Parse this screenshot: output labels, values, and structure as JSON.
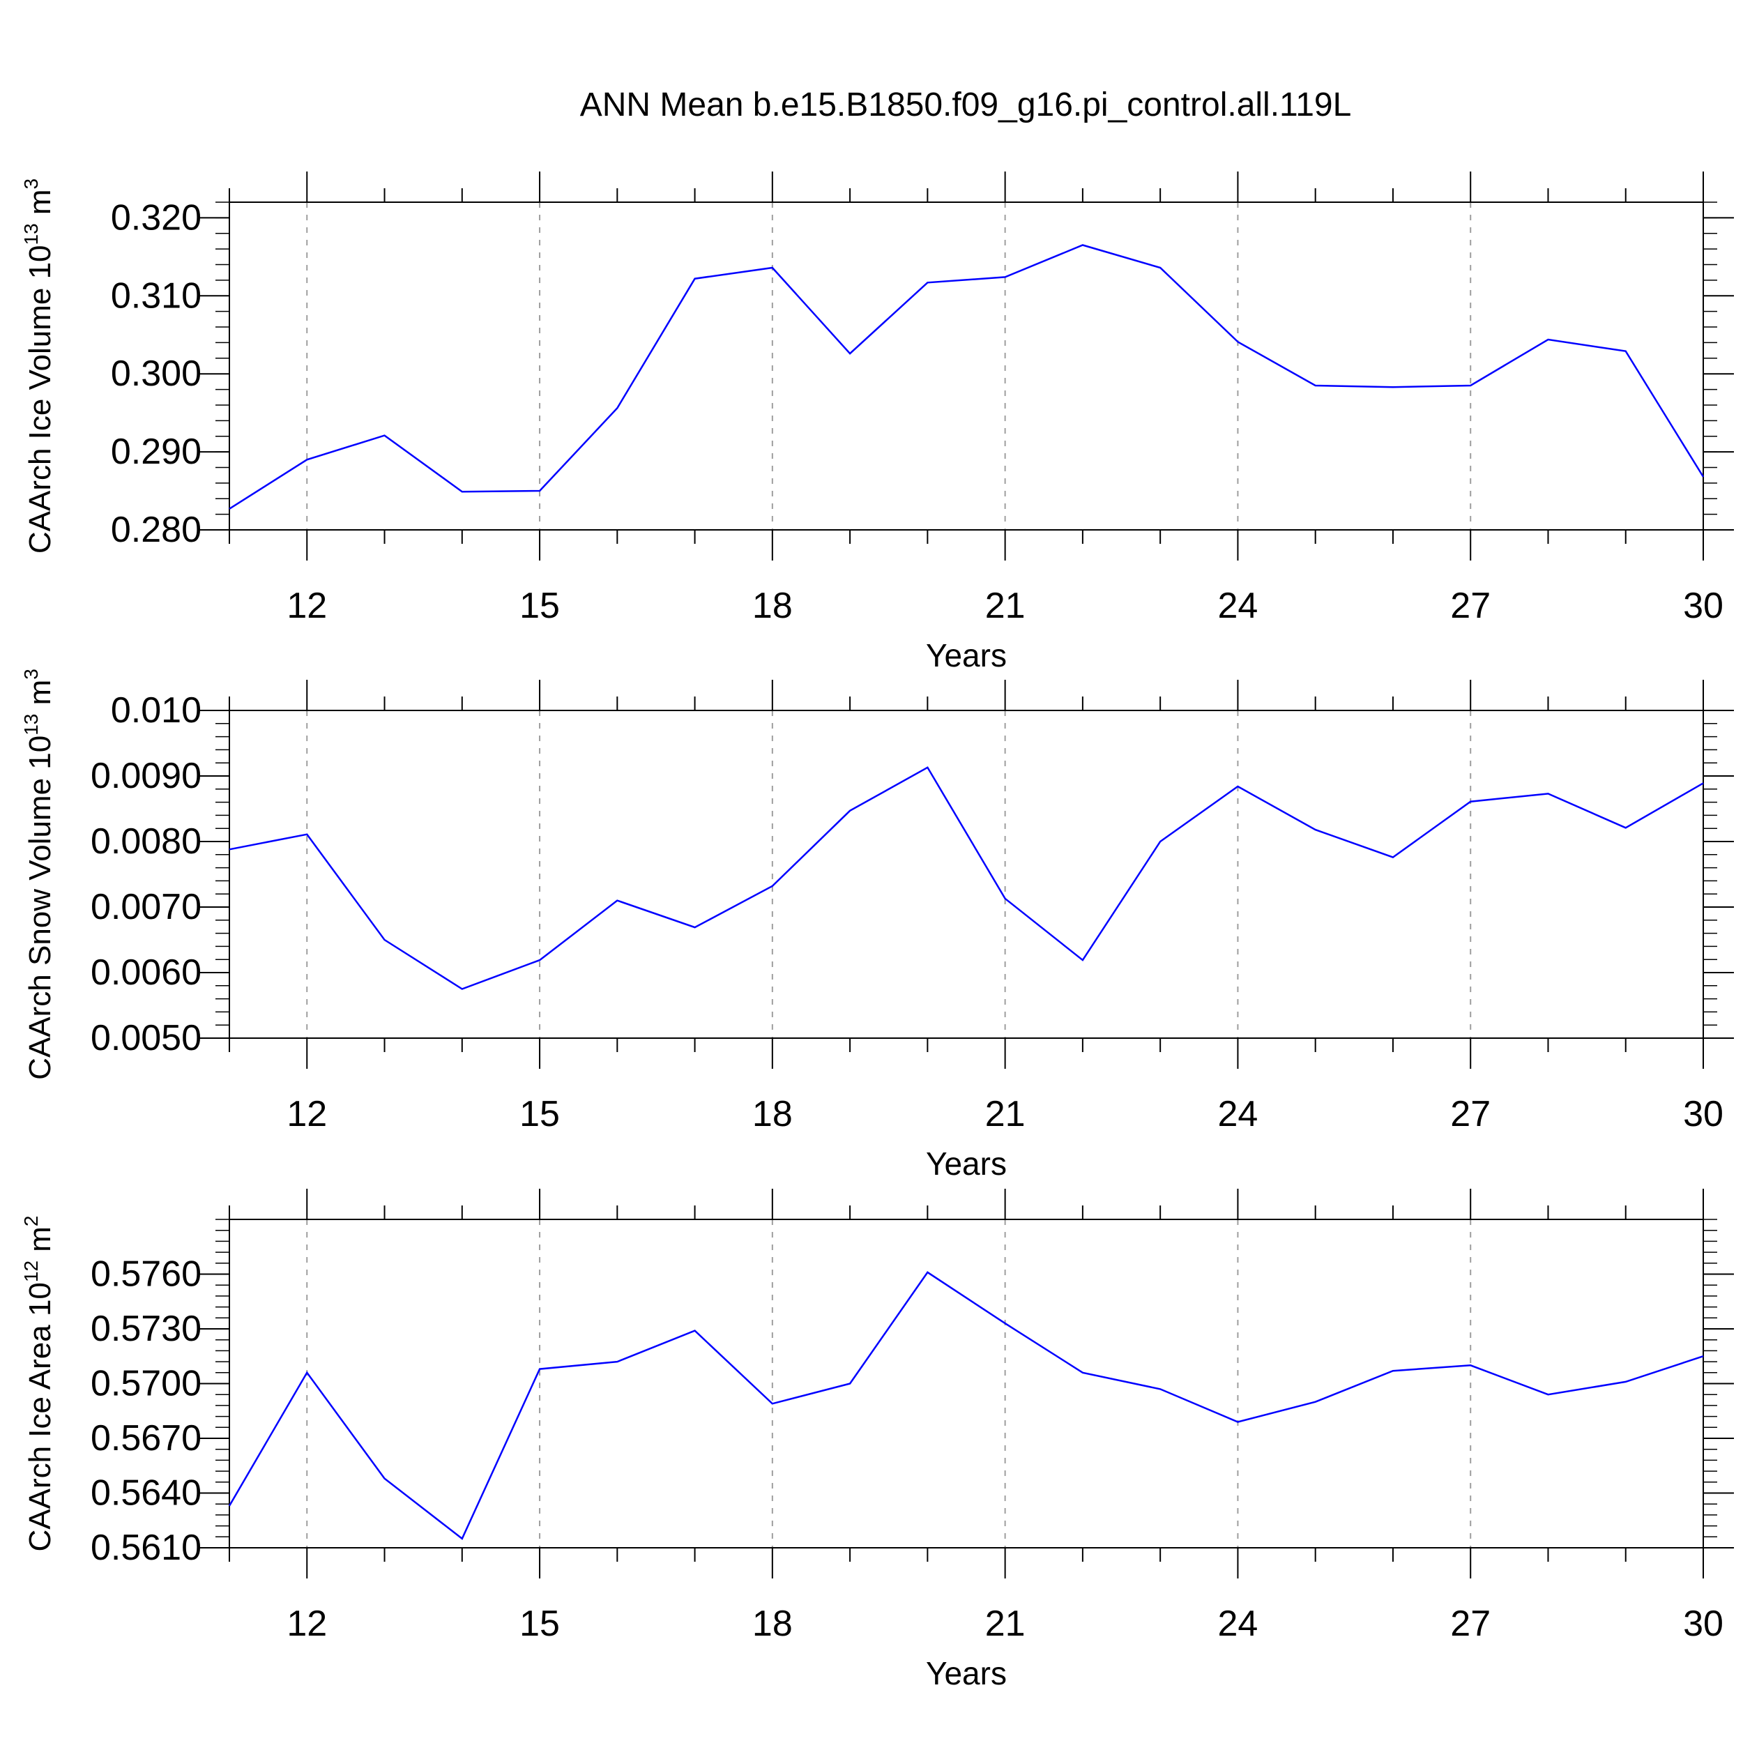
{
  "title": "ANN Mean b.e15.B1850.f09_g16.pi_control.all.119L",
  "colors": {
    "line": "#0000ff",
    "axis": "#000000",
    "grid": "#9e9e9e"
  },
  "chart_data": [
    {
      "type": "line",
      "ylabel": "CAArch Ice Volume 10",
      "ylabel_sup": "13",
      "ylabel_unit": " m",
      "ylabel_unit_sup": "3",
      "xlabel": "Years",
      "xlim": [
        11,
        30
      ],
      "ylim": [
        0.28,
        0.322
      ],
      "x_ticks": [
        12,
        15,
        18,
        21,
        24,
        27,
        30
      ],
      "y_ticks": [
        0.28,
        0.29,
        0.3,
        0.31,
        0.32
      ],
      "y_tick_labels": [
        "0.280",
        "0.290",
        "0.300",
        "0.310",
        "0.320"
      ],
      "y_minor_step": 0.002,
      "x": [
        11,
        12,
        13,
        14,
        15,
        16,
        17,
        18,
        19,
        20,
        21,
        22,
        23,
        24,
        25,
        26,
        27,
        28,
        29,
        30
      ],
      "series": [
        {
          "values": [
            0.2827,
            0.289,
            0.2921,
            0.2849,
            0.285,
            0.2956,
            0.3122,
            0.3136,
            0.3026,
            0.3117,
            0.3124,
            0.3165,
            0.3136,
            0.3041,
            0.2985,
            0.2983,
            0.2985,
            0.3044,
            0.3029,
            0.2868
          ]
        }
      ]
    },
    {
      "type": "line",
      "ylabel": "CAArch Snow Volume 10",
      "ylabel_sup": "13",
      "ylabel_unit": " m",
      "ylabel_unit_sup": "3",
      "xlabel": "Years",
      "xlim": [
        11,
        30
      ],
      "ylim": [
        0.005,
        0.01
      ],
      "x_ticks": [
        12,
        15,
        18,
        21,
        24,
        27,
        30
      ],
      "y_ticks": [
        0.005,
        0.006,
        0.007,
        0.008,
        0.009,
        0.01
      ],
      "y_tick_labels": [
        "0.0050",
        "0.0060",
        "0.0070",
        "0.0080",
        "0.0090",
        "0.010"
      ],
      "y_minor_step": 0.0002,
      "x": [
        11,
        12,
        13,
        14,
        15,
        16,
        17,
        18,
        19,
        20,
        21,
        22,
        23,
        24,
        25,
        26,
        27,
        28,
        29,
        30
      ],
      "series": [
        {
          "values": [
            0.00788,
            0.00811,
            0.0065,
            0.00575,
            0.00619,
            0.0071,
            0.00669,
            0.00732,
            0.00847,
            0.00913,
            0.00713,
            0.00619,
            0.008,
            0.00884,
            0.00818,
            0.00776,
            0.00861,
            0.00873,
            0.00821,
            0.00889
          ]
        }
      ]
    },
    {
      "type": "line",
      "ylabel": "CAArch Ice Area 10",
      "ylabel_sup": "12",
      "ylabel_unit": " m",
      "ylabel_unit_sup": "2",
      "xlabel": "Years",
      "xlim": [
        11,
        30
      ],
      "ylim": [
        0.561,
        0.579
      ],
      "x_ticks": [
        12,
        15,
        18,
        21,
        24,
        27,
        30
      ],
      "y_ticks": [
        0.561,
        0.564,
        0.567,
        0.57,
        0.573,
        0.576
      ],
      "y_tick_labels": [
        "0.5610",
        "0.5640",
        "0.5670",
        "0.5700",
        "0.5730",
        "0.5760"
      ],
      "y_minor_step": 0.0006,
      "x": [
        11,
        12,
        13,
        14,
        15,
        16,
        17,
        18,
        19,
        20,
        21,
        22,
        23,
        24,
        25,
        26,
        27,
        28,
        29,
        30
      ],
      "series": [
        {
          "values": [
            0.5633,
            0.5706,
            0.5648,
            0.5615,
            0.5708,
            0.5712,
            0.5729,
            0.5689,
            0.57,
            0.5761,
            0.5733,
            0.5706,
            0.5697,
            0.5679,
            0.569,
            0.5707,
            0.571,
            0.5694,
            0.5701,
            0.5715
          ]
        }
      ]
    }
  ]
}
